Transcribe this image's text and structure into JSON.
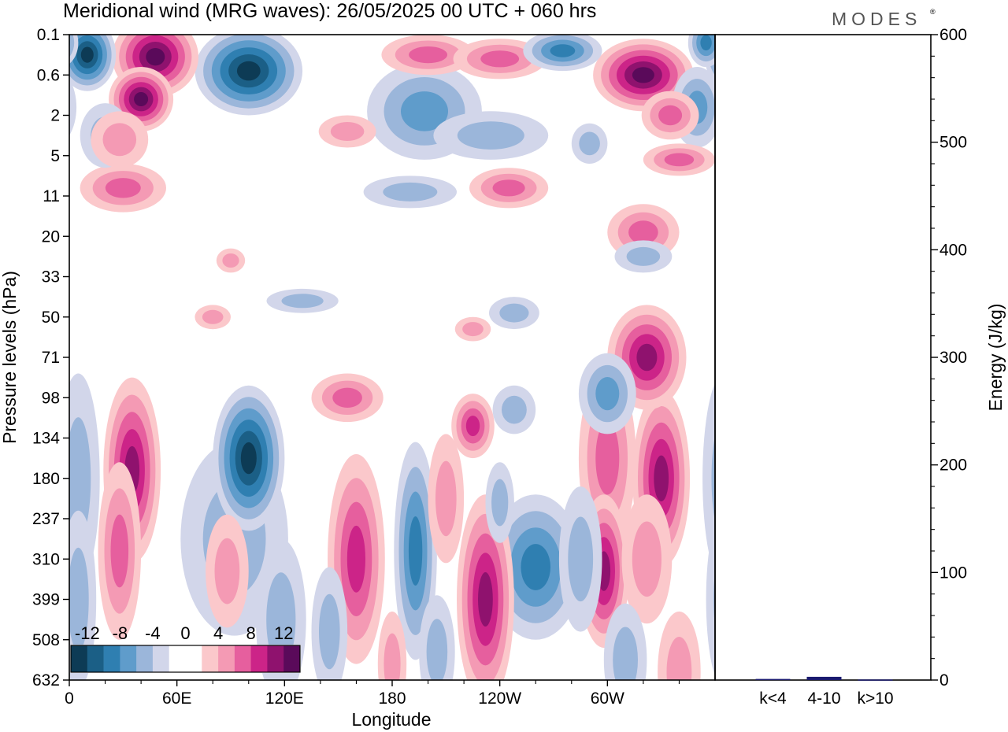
{
  "header": {
    "title": "Meridional wind (MRG waves):  26/05/2025  00 UTC  + 060 hrs",
    "logo": "MODES",
    "logo_mark": "®"
  },
  "chart_data": [
    {
      "type": "heatmap",
      "xlabel": "Longitude",
      "ylabel": "Pressure levels (hPa)",
      "x_ticks": [
        "0",
        "60E",
        "120E",
        "180",
        "120W",
        "60W"
      ],
      "x_range_degrees_east": [
        0,
        360
      ],
      "y_ticks": [
        "0.1",
        "0.6",
        "2",
        "5",
        "11",
        "20",
        "33",
        "50",
        "71",
        "98",
        "134",
        "180",
        "237",
        "310",
        "399",
        "508",
        "632"
      ],
      "y_scale": "categorical pressure levels (top 0.1 hPa, bottom 632 hPa)",
      "colorbar": {
        "labels": [
          "-12",
          "-8",
          "-4",
          "0",
          "4",
          "8",
          "12"
        ],
        "colors": [
          "#0d3b55",
          "#1b5f86",
          "#2f7fb1",
          "#5f9ccb",
          "#9bb6da",
          "#d2d6ea",
          "#ffffff",
          "#ffffff",
          "#fbc8cb",
          "#f49ab4",
          "#e65f9e",
          "#cc2488",
          "#8f126e",
          "#5a0a5a"
        ]
      },
      "features": [
        {
          "kind": "negative",
          "lon": 10,
          "level_index": 0.5,
          "value": -14
        },
        {
          "kind": "positive",
          "lon": 45,
          "level_index": 0.6,
          "value": 14
        },
        {
          "kind": "positive",
          "lon": 40,
          "level_index": 1.6,
          "value": 13
        },
        {
          "kind": "negative",
          "lon": 105,
          "level_index": 1.0,
          "value": -13
        },
        {
          "kind": "positive",
          "lon": 325,
          "level_index": 1.0,
          "value": 14
        },
        {
          "kind": "positive",
          "lon": 35,
          "level_index": 11,
          "value": 10
        },
        {
          "kind": "negative",
          "lon": 100,
          "level_index": 10.7,
          "value": -11
        },
        {
          "kind": "positive",
          "lon": 300,
          "level_index": 13,
          "value": 10
        },
        {
          "kind": "positive",
          "lon": 330,
          "level_index": 11,
          "value": 10
        },
        {
          "kind": "positive",
          "lon": 235,
          "level_index": 13.5,
          "value": 9
        },
        {
          "kind": "negative",
          "lon": 195,
          "level_index": 12.5,
          "value": -7
        }
      ]
    },
    {
      "type": "bar",
      "ylabel": "Energy (J/kg)",
      "categories": [
        "k<4",
        "4-10",
        "k>10"
      ],
      "values": [
        1,
        3,
        0.5
      ],
      "ylim": [
        0,
        600
      ],
      "y_ticks": [
        "0",
        "100",
        "200",
        "300",
        "400",
        "500",
        "600"
      ],
      "bar_color": "#1a1a6e"
    }
  ]
}
